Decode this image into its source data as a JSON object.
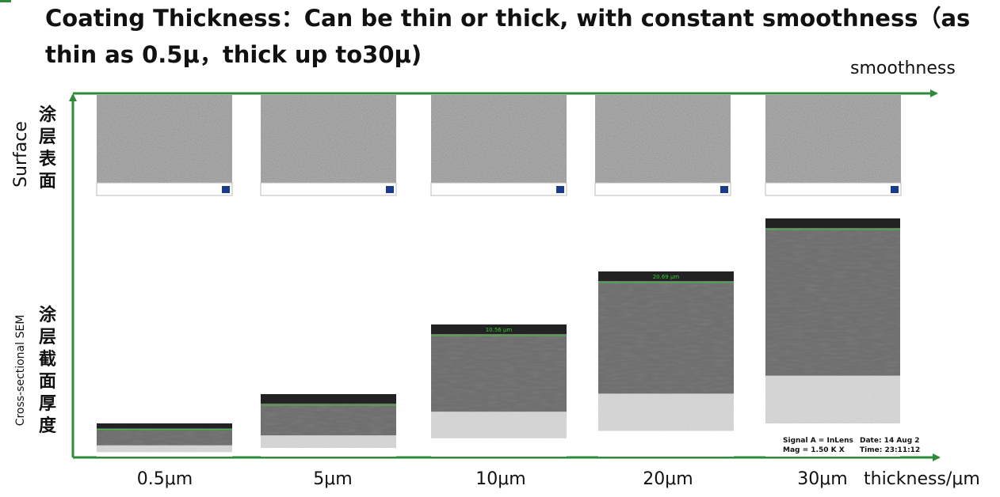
{
  "header": {
    "title_line1": "Coating Thickness：Can be thin or thick, with constant smoothness（as",
    "title_line2": "thin as 0.5μ，thick up to30μ)"
  },
  "axes": {
    "top": "smoothness",
    "bottom": "thickness/μm"
  },
  "rows": [
    {
      "label_en": "Surface",
      "label_zh": "涂层表面"
    },
    {
      "label_en": "Cross-sectional SEM",
      "label_zh": "涂层截面厚度"
    }
  ],
  "columns": [
    {
      "label": "0.5μm"
    },
    {
      "label": "5μm"
    },
    {
      "label": "10μm",
      "measure": "10.56 μm"
    },
    {
      "label": "20μm",
      "measure": "20.69 μm"
    },
    {
      "label": "30μm",
      "footer": [
        "Signal A = InLens",
        "Date: 14 Aug 2",
        "Mag =   1.50 K X",
        "Time: 23:11:12"
      ]
    }
  ]
}
